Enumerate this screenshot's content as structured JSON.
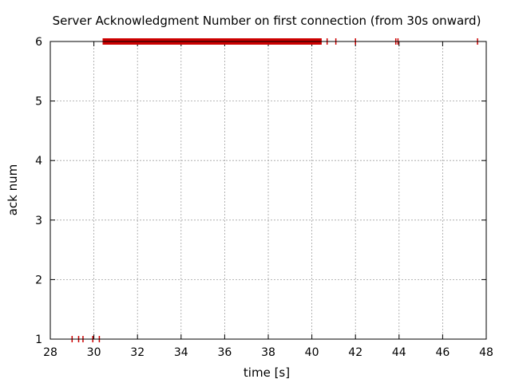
{
  "chart_data": {
    "type": "scatter",
    "title": "Server Acknowledgment Number on first connection (from 30s onward)",
    "xlabel": "time [s]",
    "ylabel": "ack num",
    "xlim": [
      28,
      48
    ],
    "ylim": [
      1,
      6
    ],
    "x_ticks": [
      28,
      30,
      32,
      34,
      36,
      38,
      40,
      42,
      44,
      46,
      48
    ],
    "y_ticks": [
      1,
      2,
      3,
      4,
      5,
      6
    ],
    "grid": true,
    "legend": "none",
    "marker": "vertical-tick",
    "series": [
      {
        "color": "#cc0000",
        "points": [
          {
            "x": 29.0,
            "y": 1
          },
          {
            "x": 29.3,
            "y": 1
          },
          {
            "x": 29.5,
            "y": 1
          },
          {
            "x": 29.95,
            "y": 1
          },
          {
            "x": 30.25,
            "y": 1
          }
        ]
      },
      {
        "color": "#cc0000",
        "band": {
          "x_start": 30.4,
          "x_end": 40.45,
          "y": 6
        }
      },
      {
        "color": "#cc0000",
        "points": [
          {
            "x": 40.7,
            "y": 6
          },
          {
            "x": 41.1,
            "y": 6
          },
          {
            "x": 42.0,
            "y": 6
          },
          {
            "x": 43.85,
            "y": 6
          },
          {
            "x": 43.95,
            "y": 6
          },
          {
            "x": 47.6,
            "y": 6
          }
        ]
      }
    ]
  }
}
